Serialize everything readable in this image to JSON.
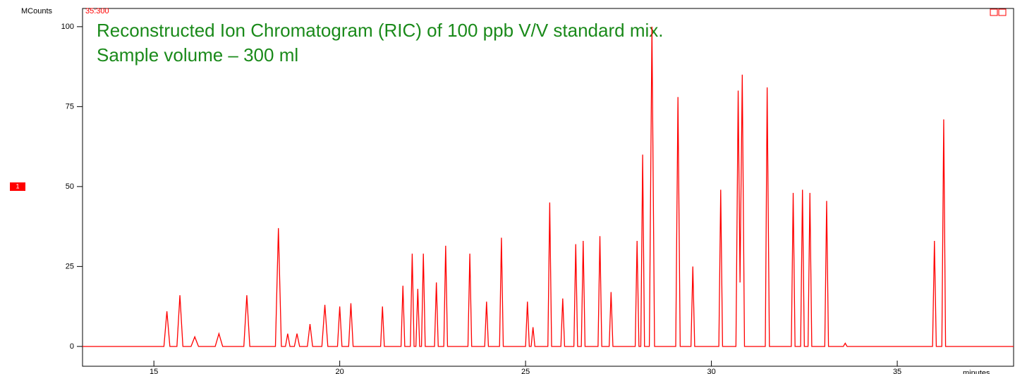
{
  "chart_data": {
    "type": "line",
    "title": "Reconstructed Ion Chromatogram (RIC) of 100 ppb V/V standard mix.",
    "subtitle": "Sample volume – 300 ml",
    "y_label": "MCounts",
    "x_label": "minutes",
    "annotation": "35:300",
    "trace_label": "1",
    "color": "#ff0000",
    "xlim": [
      13.08,
      38.13
    ],
    "ylim": [
      -6.2,
      105.7
    ],
    "xticks": [
      15,
      20,
      25,
      30,
      35
    ],
    "yticks": [
      0,
      25,
      50,
      75,
      100
    ],
    "x": [
      13.08,
      15.27,
      15.35,
      15.43,
      15.62,
      15.7,
      15.78,
      16.0,
      16.1,
      16.2,
      16.65,
      16.75,
      16.85,
      17.42,
      17.5,
      17.58,
      18.27,
      18.35,
      18.43,
      18.54,
      18.6,
      18.66,
      18.78,
      18.85,
      18.92,
      19.13,
      19.2,
      19.27,
      19.52,
      19.6,
      19.68,
      19.94,
      20.0,
      20.06,
      20.24,
      20.3,
      20.36,
      21.1,
      21.15,
      21.2,
      21.65,
      21.7,
      21.75,
      21.9,
      21.95,
      22.0,
      22.05,
      22.1,
      22.15,
      22.2,
      22.25,
      22.3,
      22.55,
      22.6,
      22.65,
      22.8,
      22.85,
      22.9,
      23.45,
      23.5,
      23.55,
      23.9,
      23.95,
      24.0,
      24.3,
      24.35,
      24.4,
      25.0,
      25.05,
      25.1,
      25.15,
      25.2,
      25.25,
      25.6,
      25.65,
      25.7,
      25.95,
      26.0,
      26.05,
      26.3,
      26.35,
      26.4,
      26.5,
      26.55,
      26.6,
      26.95,
      27.0,
      27.05,
      27.25,
      27.3,
      27.35,
      27.95,
      28.0,
      28.05,
      28.1,
      28.15,
      28.2,
      28.33,
      28.4,
      28.47,
      29.04,
      29.1,
      29.16,
      29.45,
      29.5,
      29.55,
      30.2,
      30.25,
      30.3,
      30.66,
      30.72,
      30.77,
      30.83,
      30.89,
      31.45,
      31.5,
      31.56,
      32.15,
      32.2,
      32.25,
      32.4,
      32.45,
      32.5,
      32.6,
      32.65,
      32.7,
      33.05,
      33.1,
      33.15,
      33.55,
      33.6,
      33.65,
      35.95,
      36.0,
      36.05,
      36.2,
      36.25,
      36.3,
      38.13
    ],
    "values": [
      0,
      0,
      11,
      0,
      0,
      16,
      0,
      0,
      3,
      0,
      0,
      4,
      0,
      0,
      16,
      0,
      0,
      37,
      0,
      0,
      4,
      0,
      0,
      4,
      0,
      0,
      7,
      0,
      0,
      13,
      0,
      0,
      12.5,
      0,
      0,
      13.5,
      0,
      0,
      12.5,
      0,
      0,
      19,
      0,
      0,
      29,
      0,
      0,
      18,
      0,
      0,
      29,
      0,
      0,
      20,
      0,
      0,
      31.5,
      0,
      0,
      29,
      0,
      0,
      14,
      0,
      0,
      34,
      0,
      0,
      14,
      0,
      0,
      6,
      0,
      0,
      45,
      0,
      0,
      15,
      0,
      0,
      32,
      0,
      0,
      33,
      0,
      0,
      34.5,
      0,
      0,
      17,
      0,
      0,
      33,
      0,
      0,
      60,
      0,
      0,
      100,
      0,
      0,
      78,
      0,
      0,
      25,
      0,
      0,
      49,
      0,
      0,
      80,
      20,
      85,
      0,
      0,
      81,
      0,
      0,
      48,
      0,
      0,
      49,
      0,
      0,
      48,
      0,
      0,
      45.5,
      0,
      0,
      1,
      0,
      0,
      33,
      0,
      0,
      71,
      0,
      0
    ]
  }
}
